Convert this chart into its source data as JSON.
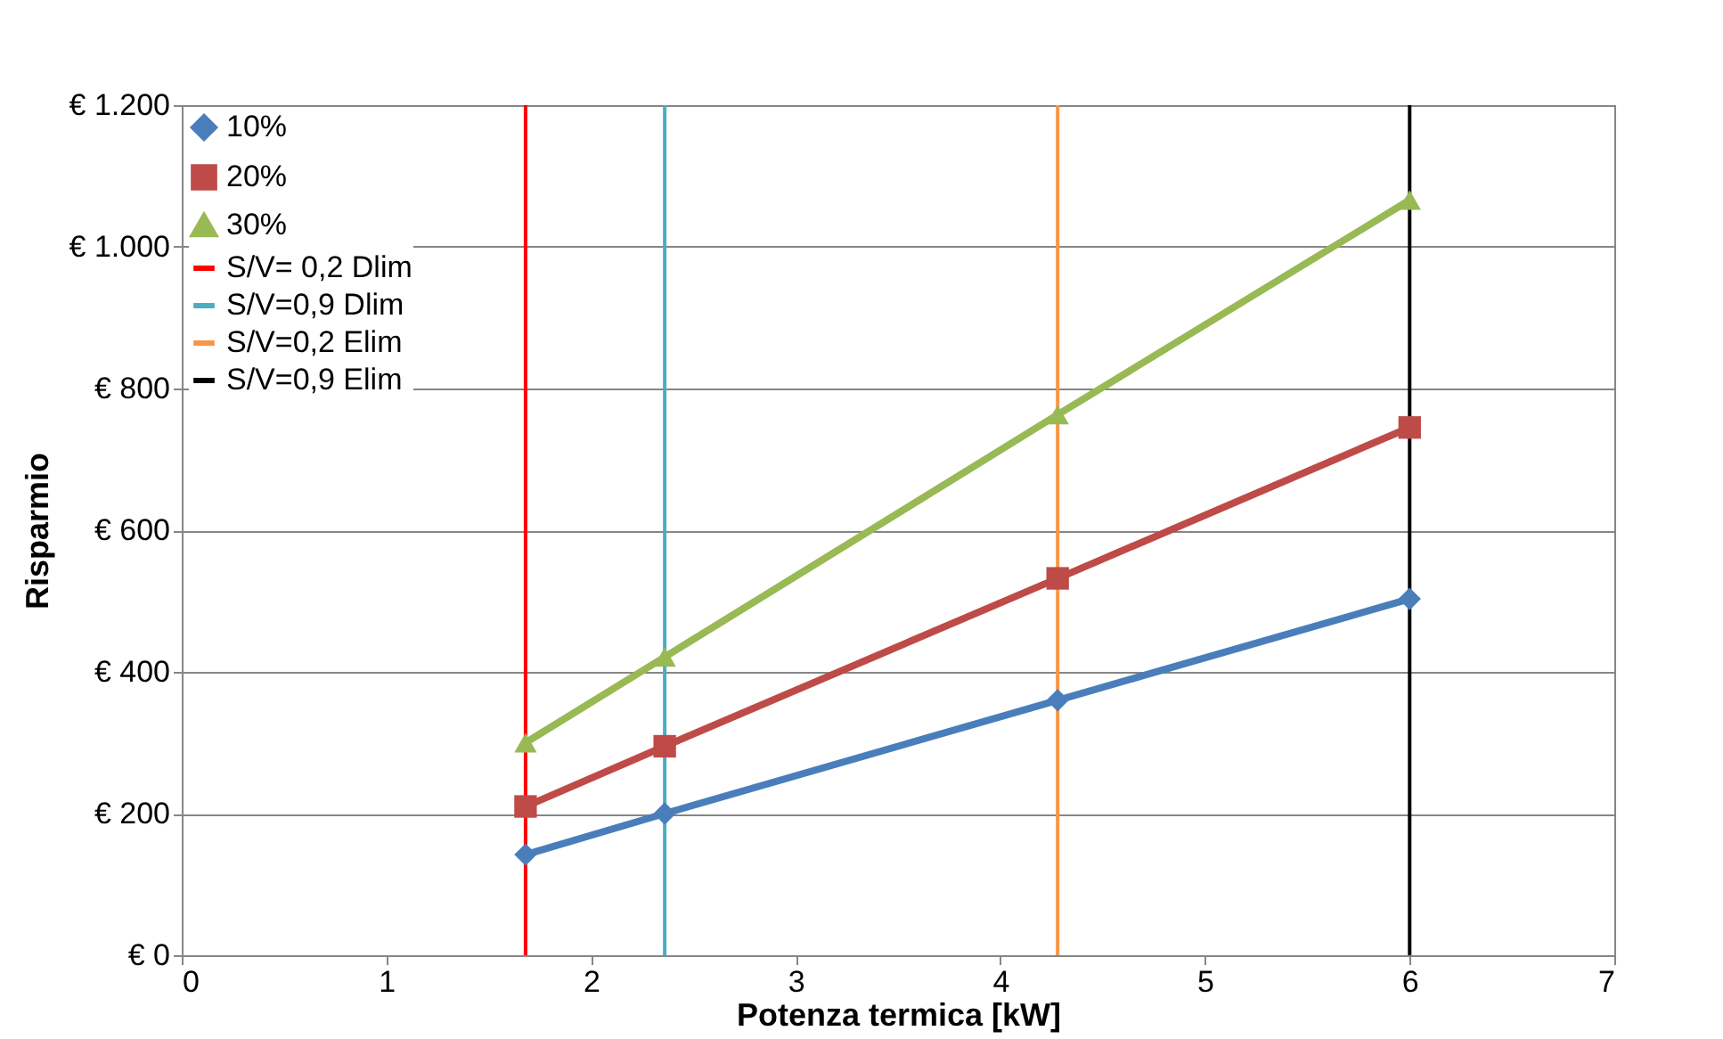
{
  "chart_data": {
    "type": "line",
    "xlabel": "Potenza termica  [kW]",
    "ylabel": "Risparmio",
    "x": [
      1.68,
      2.36,
      4.28,
      6.0
    ],
    "series": [
      {
        "name": "10%",
        "color": "#4a7ebb",
        "values": [
          142,
          200,
          360,
          503
        ],
        "marker": "diamond"
      },
      {
        "name": "20%",
        "color": "#be4b48",
        "values": [
          210,
          295,
          532,
          745
        ],
        "marker": "square"
      },
      {
        "name": "30%",
        "color": "#98b954",
        "values": [
          300,
          421,
          763,
          1066
        ],
        "marker": "triangle"
      },
      {
        "name": "S/V= 0,2 Dlim",
        "color": "#ff0000",
        "x": [
          1.68,
          1.68
        ],
        "values": [
          0,
          1200
        ],
        "marker": "none"
      },
      {
        "name": "S/V=0,9 Dlim",
        "color": "#4bacc6",
        "x": [
          2.36,
          2.36
        ],
        "values": [
          0,
          1200
        ],
        "marker": "none"
      },
      {
        "name": "S/V=0,2 Elim",
        "color": "#f79646",
        "x": [
          4.28,
          4.28
        ],
        "values": [
          0,
          1200
        ],
        "marker": "none"
      },
      {
        "name": "S/V=0,9 Elim",
        "color": "#000000",
        "x": [
          6.0,
          6.0
        ],
        "values": [
          0,
          1200
        ],
        "marker": "none"
      }
    ],
    "xlim": [
      0,
      7
    ],
    "xticks": [
      0,
      1,
      2,
      3,
      4,
      5,
      6,
      7
    ],
    "ylim": [
      0,
      1200
    ],
    "yticks": [
      {
        "value": 0,
        "label": "€ 0"
      },
      {
        "value": 200,
        "label": "€ 200"
      },
      {
        "value": 400,
        "label": "€ 400"
      },
      {
        "value": 600,
        "label": "€ 600"
      },
      {
        "value": 800,
        "label": "€ 800"
      },
      {
        "value": 1000,
        "label": "€ 1.000"
      },
      {
        "value": 1200,
        "label": "€ 1.200"
      }
    ],
    "grid": "y",
    "legend": "top left",
    "line_style": "solid"
  }
}
